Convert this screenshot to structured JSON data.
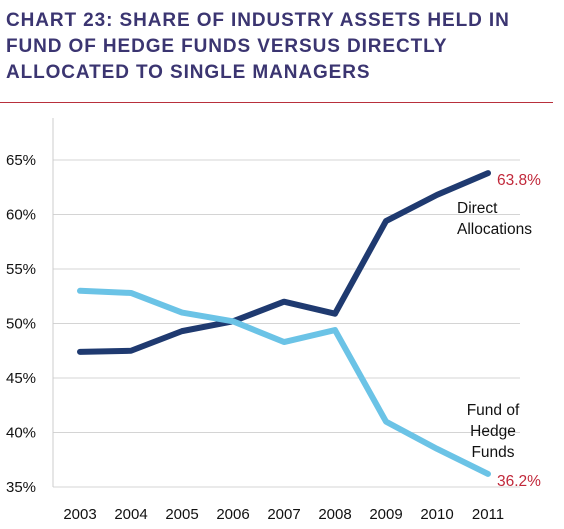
{
  "chart_data": {
    "type": "line",
    "title": "CHART 23: SHARE OF INDUSTRY ASSETS HELD IN FUND OF HEDGE FUNDS VERSUS DIRECTLY ALLOCATED TO SINGLE MANAGERS",
    "xlabel": "",
    "ylabel": "",
    "x": [
      "2003",
      "2004",
      "2005",
      "2006",
      "2007",
      "2008",
      "2009",
      "2010",
      "2011"
    ],
    "ylim": [
      35,
      65
    ],
    "yticks": [
      "35%",
      "40%",
      "45%",
      "50%",
      "55%",
      "60%",
      "65%"
    ],
    "grid": true,
    "series": [
      {
        "name": "Direct Allocations",
        "label_lines": [
          "Direct",
          "Allocations"
        ],
        "color": "#1f3a70",
        "values": [
          47.4,
          47.5,
          49.3,
          50.2,
          52.0,
          50.9,
          59.4,
          61.8,
          63.8
        ],
        "end_label": "63.8%"
      },
      {
        "name": "Fund of Hedge Funds",
        "label_lines": [
          "Fund of",
          "Hedge",
          "Funds"
        ],
        "color": "#6bc3e6",
        "values": [
          53.0,
          52.8,
          51.0,
          50.2,
          48.3,
          49.4,
          41.0,
          38.5,
          36.2
        ],
        "end_label": "36.2%"
      }
    ],
    "accent_color": "#c1283a",
    "title_color": "#3b3571"
  }
}
